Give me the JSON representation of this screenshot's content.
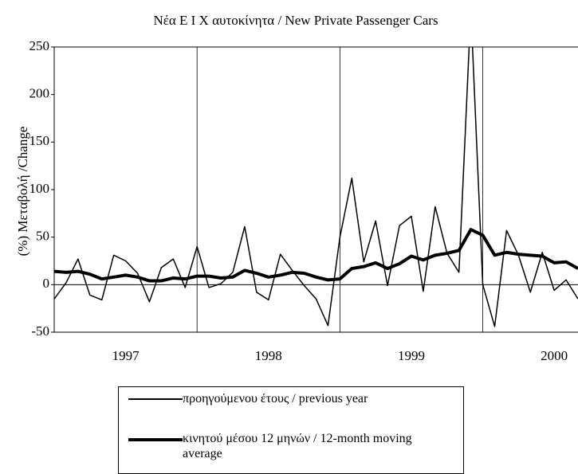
{
  "chart_data": {
    "type": "line",
    "title": "Νέα  Ε Ι Χ αυτοκίνητα / New Private Passenger Cars",
    "y_label": "(%) Μεταβολή /Change",
    "categories": [
      null,
      null,
      null,
      null,
      null,
      null,
      "1997",
      null,
      null,
      null,
      null,
      null,
      null,
      null,
      null,
      null,
      null,
      null,
      "1998",
      null,
      null,
      null,
      null,
      null,
      null,
      null,
      null,
      null,
      null,
      null,
      "1999",
      null,
      null,
      null,
      null,
      null,
      null,
      null,
      null,
      null,
      null,
      null,
      "2000",
      null,
      null
    ],
    "series": [
      {
        "name": "προηγούμενου έτους / previous year",
        "color": "#000000",
        "width": 1.5,
        "values": [
          -15,
          2,
          27,
          -11,
          -16,
          31,
          25,
          12,
          -18,
          18,
          27,
          -3,
          40,
          -3,
          1,
          13,
          61,
          -8,
          -16,
          32,
          15,
          -1,
          -15,
          -43,
          50,
          112,
          24,
          67,
          -1,
          62,
          72,
          -7,
          82,
          33,
          13,
          290,
          0,
          -44,
          57,
          31,
          -8,
          34,
          -6,
          5,
          -15
        ]
      },
      {
        "name": "κινητού μέσου 12 μηνών / 12-month moving average",
        "color": "#000000",
        "width": 4,
        "values": [
          14,
          13,
          14,
          11,
          6,
          8,
          10,
          8,
          4,
          4,
          7,
          6,
          9,
          9,
          7,
          8,
          15,
          12,
          8,
          10,
          13,
          12,
          8,
          5,
          6,
          17,
          19,
          23,
          17,
          22,
          30,
          26,
          31,
          33,
          36,
          58,
          52,
          31,
          34,
          32,
          31,
          30,
          23,
          24,
          17
        ]
      }
    ],
    "ylim": [
      -50,
      250
    ],
    "yticks": [
      -50,
      0,
      50,
      100,
      150,
      200,
      250
    ],
    "zero_line": true,
    "year_dividers": true
  }
}
